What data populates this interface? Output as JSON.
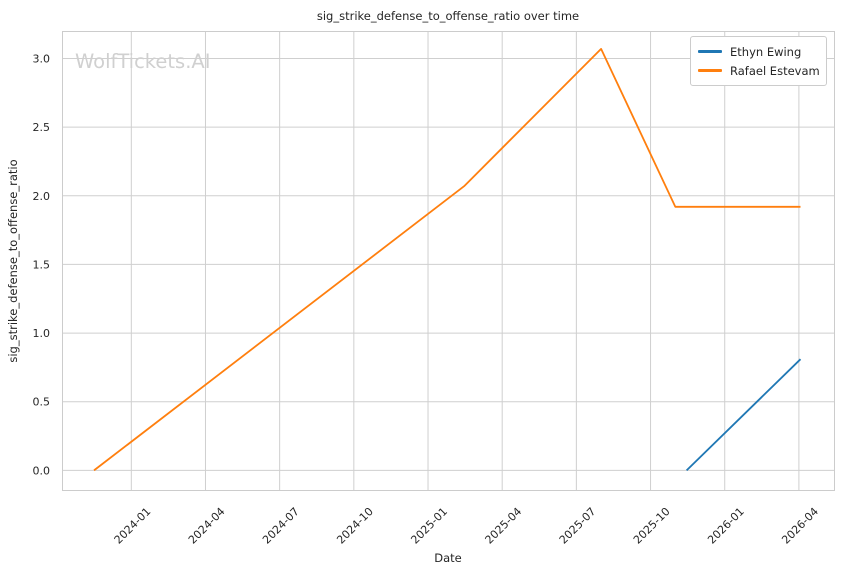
{
  "watermark": "WolfTickets.AI",
  "chart_data": {
    "type": "line",
    "title": "sig_strike_defense_to_offense_ratio over time",
    "xlabel": "Date",
    "ylabel": "sig_strike_defense_to_offense_ratio",
    "x_tick_labels": [
      "2024-01",
      "2024-04",
      "2024-07",
      "2024-10",
      "2025-01",
      "2025-04",
      "2025-07",
      "2025-10",
      "2026-01",
      "2026-04"
    ],
    "y_tick_labels": [
      "0.0",
      "0.5",
      "1.0",
      "1.5",
      "2.0",
      "2.5",
      "3.0"
    ],
    "y_ticks": [
      0.0,
      0.5,
      1.0,
      1.5,
      2.0,
      2.5,
      3.0
    ],
    "xlim": [
      "2023-10-07",
      "2026-05-15"
    ],
    "ylim": [
      -0.15,
      3.2
    ],
    "grid": true,
    "legend_position": "top-right",
    "series": [
      {
        "name": "Ethyn Ewing",
        "color": "#1f77b4",
        "points": [
          {
            "date": "2025-11-15",
            "value": 0.0
          },
          {
            "date": "2026-04-03",
            "value": 0.81
          }
        ]
      },
      {
        "name": "Rafael Estevam",
        "color": "#ff7f0e",
        "points": [
          {
            "date": "2023-11-16",
            "value": 0.0
          },
          {
            "date": "2025-02-15",
            "value": 2.07
          },
          {
            "date": "2025-08-01",
            "value": 3.07
          },
          {
            "date": "2025-11-01",
            "value": 1.92
          },
          {
            "date": "2026-04-03",
            "value": 1.92
          }
        ]
      }
    ],
    "colors": {
      "grid": "#cfcfcf",
      "spine": "#cccccc",
      "text": "#262626",
      "watermark": "#d0d0d0",
      "background": "#ffffff"
    }
  }
}
